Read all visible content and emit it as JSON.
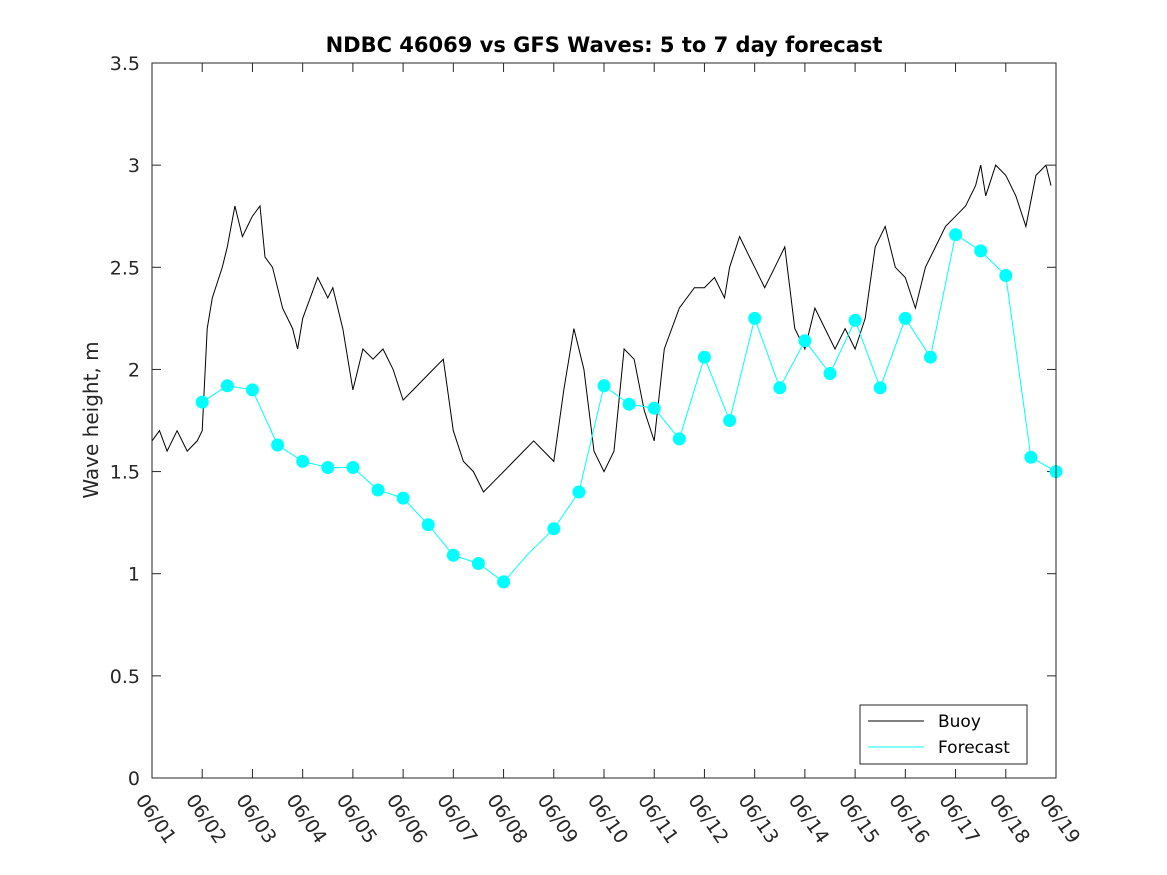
{
  "chart_data": {
    "type": "line",
    "title": "NDBC 46069 vs GFS Waves: 5 to 7 day forecast",
    "xlabel": "",
    "ylabel": "Wave height, m",
    "ylim": [
      0,
      3.5
    ],
    "yticks": [
      "0",
      "0.5",
      "1",
      "1.5",
      "2",
      "2.5",
      "3",
      "3.5"
    ],
    "xlim": [
      0,
      18
    ],
    "xticks": [
      "06/01",
      "06/02",
      "06/03",
      "06/04",
      "06/05",
      "06/06",
      "06/07",
      "06/08",
      "06/09",
      "06/10",
      "06/11",
      "06/12",
      "06/13",
      "06/14",
      "06/15",
      "06/16",
      "06/17",
      "06/18",
      "06/19"
    ],
    "grid": false,
    "legend": {
      "position": "bottom-right",
      "entries": [
        "Buoy",
        "Forecast"
      ]
    },
    "colors": {
      "buoy": "#000000",
      "forecast": "#00ffff"
    },
    "x_unit_note": "days since 06/01",
    "series": [
      {
        "name": "Buoy",
        "x": [
          0,
          0.15,
          0.3,
          0.5,
          0.7,
          0.9,
          1.0,
          1.1,
          1.2,
          1.4,
          1.5,
          1.65,
          1.8,
          1.9,
          2.0,
          2.15,
          2.25,
          2.4,
          2.6,
          2.8,
          2.9,
          3.0,
          3.15,
          3.3,
          3.5,
          3.6,
          3.8,
          4.0,
          4.2,
          4.4,
          4.6,
          4.8,
          5.0,
          5.2,
          5.4,
          5.6,
          5.8,
          6.0,
          6.2,
          6.4,
          6.6,
          6.8,
          7.0,
          7.2,
          7.4,
          7.6,
          7.8,
          8.0,
          8.2,
          8.4,
          8.6,
          8.8,
          9.0,
          9.2,
          9.4,
          9.6,
          9.8,
          10.0,
          10.2,
          10.5,
          10.8,
          11.0,
          11.2,
          11.4,
          11.5,
          11.7,
          11.9,
          12.0,
          12.2,
          12.4,
          12.6,
          12.8,
          13.0,
          13.2,
          13.4,
          13.6,
          13.8,
          14.0,
          14.2,
          14.4,
          14.6,
          14.8,
          15.0,
          15.2,
          15.4,
          15.6,
          15.8,
          16.0,
          16.2,
          16.4,
          16.5,
          16.6,
          16.8,
          17.0,
          17.2,
          17.4,
          17.6,
          17.8,
          17.9
        ],
        "values": [
          1.65,
          1.7,
          1.6,
          1.7,
          1.6,
          1.65,
          1.7,
          2.2,
          2.35,
          2.5,
          2.6,
          2.8,
          2.65,
          2.7,
          2.75,
          2.8,
          2.55,
          2.5,
          2.3,
          2.2,
          2.1,
          2.25,
          2.35,
          2.45,
          2.35,
          2.4,
          2.2,
          1.9,
          2.1,
          2.05,
          2.1,
          2.0,
          1.85,
          1.9,
          1.95,
          2.0,
          2.05,
          1.7,
          1.55,
          1.5,
          1.4,
          1.45,
          1.5,
          1.55,
          1.6,
          1.65,
          1.6,
          1.55,
          1.9,
          2.2,
          2.0,
          1.6,
          1.5,
          1.6,
          2.1,
          2.05,
          1.8,
          1.65,
          2.1,
          2.3,
          2.4,
          2.4,
          2.45,
          2.35,
          2.5,
          2.65,
          2.55,
          2.5,
          2.4,
          2.5,
          2.6,
          2.2,
          2.1,
          2.3,
          2.2,
          2.1,
          2.2,
          2.1,
          2.25,
          2.6,
          2.7,
          2.5,
          2.45,
          2.3,
          2.5,
          2.6,
          2.7,
          2.75,
          2.8,
          2.9,
          3.0,
          2.85,
          3.0,
          2.95,
          2.85,
          2.7,
          2.95,
          3.0,
          2.9
        ]
      },
      {
        "name": "Forecast",
        "x": [
          1,
          1.5,
          2,
          2.5,
          3,
          3.5,
          4,
          4.5,
          5,
          5.5,
          6,
          6.5,
          7,
          7.5,
          8,
          8.5,
          9,
          9.5,
          10,
          10.5,
          11,
          11.5,
          12,
          12.5,
          13,
          13.5,
          14,
          14.5,
          15,
          15.5,
          16,
          16.5,
          17,
          17.5,
          18
        ],
        "values": [
          1.84,
          1.92,
          1.9,
          1.63,
          1.55,
          1.52,
          1.52,
          1.41,
          1.37,
          1.24,
          1.09,
          1.05,
          0.96,
          1.1,
          1.22,
          1.4,
          1.92,
          1.83,
          1.81,
          1.66,
          2.06,
          1.75,
          2.25,
          1.91,
          2.14,
          1.98,
          2.24,
          1.91,
          2.25,
          2.06,
          2.66,
          2.58,
          2.46,
          1.57,
          1.5
        ]
      }
    ],
    "forecast_markers": {
      "x": [
        1,
        1.5,
        2,
        2.5,
        3,
        3.5,
        4,
        4.5,
        5,
        5.5,
        6,
        6.5,
        7,
        8,
        8.5,
        9,
        9.5,
        10,
        10.5,
        11,
        11.5,
        12,
        12.5,
        13,
        13.5,
        14,
        14.5,
        15,
        15.5,
        16,
        16.5,
        17,
        17.5,
        18
      ],
      "values": [
        1.84,
        1.92,
        1.9,
        1.63,
        1.55,
        1.52,
        1.52,
        1.41,
        1.37,
        1.24,
        1.09,
        1.05,
        0.96,
        1.22,
        1.4,
        1.92,
        1.83,
        1.81,
        1.66,
        2.06,
        1.75,
        2.25,
        1.91,
        2.14,
        1.98,
        2.24,
        1.91,
        2.25,
        2.06,
        2.66,
        2.58,
        2.46,
        1.57,
        1.5
      ]
    }
  }
}
